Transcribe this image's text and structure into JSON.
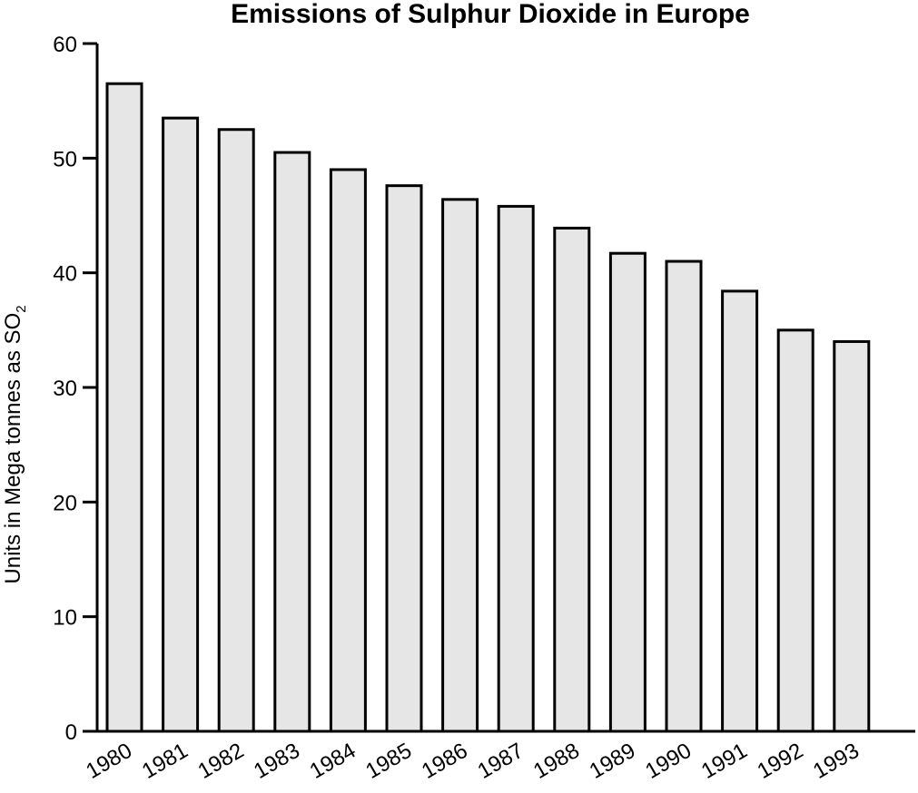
{
  "chart_data": {
    "type": "bar",
    "title": "Emissions of Sulphur Dioxide in Europe",
    "xlabel": "",
    "ylabel": "Units in Mega tonnes as SO",
    "ylabel_subscript": "2",
    "categories": [
      "1980",
      "1981",
      "1982",
      "1983",
      "1984",
      "1985",
      "1986",
      "1987",
      "1988",
      "1989",
      "1990",
      "1991",
      "1992",
      "1993"
    ],
    "values": [
      56.5,
      53.5,
      52.5,
      50.5,
      49.0,
      47.6,
      46.4,
      45.8,
      43.9,
      41.7,
      41.0,
      38.4,
      35.0,
      34.0
    ],
    "ylim": [
      0,
      60
    ],
    "yticks": [
      0,
      10,
      20,
      30,
      40,
      50,
      60
    ],
    "grid": false,
    "colors": {
      "bar_fill": "#e6e6e6",
      "bar_stroke": "#000000"
    }
  }
}
